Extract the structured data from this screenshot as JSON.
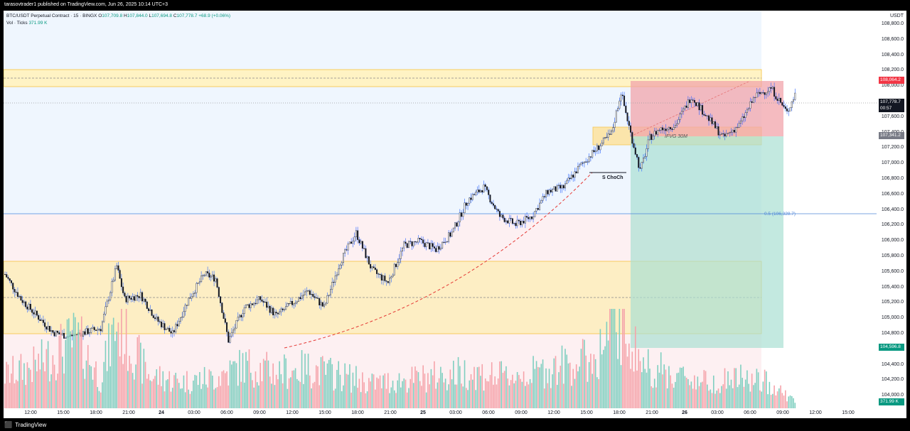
{
  "header": {
    "published": "tarasovtrader1 published on TradingView.com, Jun 26, 2025 10:14 UTC+3"
  },
  "legend": {
    "symbol": "BTC/USDT Perpetual Contract · 15 · BINGX",
    "o_label": "O",
    "o": "107,709.8",
    "h_label": "H",
    "h": "107,844.0",
    "l_label": "L",
    "l": "107,694.8",
    "c_label": "C",
    "c": "107,778.7",
    "change": "+68.9 (+0.06%)",
    "vol_label": "Vol · Ticks",
    "vol": "371.99 K"
  },
  "price_axis": {
    "unit": "USDT",
    "ticks": [
      "108,800.0",
      "108,600.0",
      "108,400.0",
      "108,200.0",
      "108,000.0",
      "107,800.0",
      "107,600.0",
      "107,400.0",
      "107,200.0",
      "107,000.0",
      "106,800.0",
      "106,600.0",
      "106,400.0",
      "106,200.0",
      "106,000.0",
      "105,800.0",
      "105,600.0",
      "105,400.0",
      "105,200.0",
      "105,000.0",
      "104,800.0",
      "104,600.0",
      "104,400.0",
      "104,200.0",
      "104,000.0"
    ]
  },
  "badges": {
    "stop": "108,064.2",
    "current_price": "107,778.7",
    "countdown": "00:57",
    "entry": "107,341.2",
    "target": "104,596.8",
    "volume": "371.99 K"
  },
  "time_axis": {
    "ticks": [
      {
        "label": "12:00",
        "bold": false
      },
      {
        "label": "15:00",
        "bold": false
      },
      {
        "label": "18:00",
        "bold": false
      },
      {
        "label": "21:00",
        "bold": false
      },
      {
        "label": "24",
        "bold": true
      },
      {
        "label": "03:00",
        "bold": false
      },
      {
        "label": "06:00",
        "bold": false
      },
      {
        "label": "09:00",
        "bold": false
      },
      {
        "label": "12:00",
        "bold": false
      },
      {
        "label": "15:00",
        "bold": false
      },
      {
        "label": "18:00",
        "bold": false
      },
      {
        "label": "21:00",
        "bold": false
      },
      {
        "label": "25",
        "bold": true
      },
      {
        "label": "03:00",
        "bold": false
      },
      {
        "label": "06:00",
        "bold": false
      },
      {
        "label": "09:00",
        "bold": false
      },
      {
        "label": "12:00",
        "bold": false
      },
      {
        "label": "15:00",
        "bold": false
      },
      {
        "label": "18:00",
        "bold": false
      },
      {
        "label": "21:00",
        "bold": false
      },
      {
        "label": "26",
        "bold": true
      },
      {
        "label": "03:00",
        "bold": false
      },
      {
        "label": "06:00",
        "bold": false
      },
      {
        "label": "09:00",
        "bold": false
      },
      {
        "label": "12:00",
        "bold": false
      },
      {
        "label": "15:00",
        "bold": false
      }
    ]
  },
  "annotations": {
    "choch": "S ChoCh",
    "ifvg": "IFVG 30M",
    "fib": "0.5 (106,328.7)"
  },
  "colors": {
    "up": "#089981",
    "down": "#f23645",
    "wick": "#2962ff",
    "candle_body": "#131722",
    "fib": "#2962ff",
    "zone": "#ffeb3b",
    "curve": "#e53935"
  },
  "footer": {
    "brand": "TradingView"
  },
  "chart_data": {
    "type": "candlestick",
    "title": "BTC/USDT Perpetual Contract · 15 · BINGX",
    "ylim": [
      104000,
      108800
    ],
    "key_levels": {
      "stop": 108064.2,
      "last": 107778.7,
      "entry": 107341.2,
      "target": 104596.8,
      "fib_0_5": 106328.7
    },
    "close_path": [
      [
        0,
        105600
      ],
      [
        10,
        105300
      ],
      [
        20,
        105100
      ],
      [
        30,
        104900
      ],
      [
        40,
        104850
      ],
      [
        50,
        104900
      ],
      [
        60,
        104950
      ],
      [
        70,
        105700
      ],
      [
        75,
        105300
      ],
      [
        85,
        105350
      ],
      [
        95,
        105050
      ],
      [
        105,
        104880
      ],
      [
        115,
        105300
      ],
      [
        125,
        105600
      ],
      [
        132,
        105550
      ],
      [
        140,
        104800
      ],
      [
        150,
        105200
      ],
      [
        160,
        105300
      ],
      [
        170,
        105100
      ],
      [
        180,
        105250
      ],
      [
        190,
        105400
      ],
      [
        200,
        105200
      ],
      [
        210,
        105750
      ],
      [
        220,
        106100
      ],
      [
        230,
        105650
      ],
      [
        240,
        105500
      ],
      [
        250,
        105950
      ],
      [
        260,
        106000
      ],
      [
        270,
        105900
      ],
      [
        280,
        106100
      ],
      [
        290,
        106500
      ],
      [
        300,
        106650
      ],
      [
        310,
        106300
      ],
      [
        320,
        106200
      ],
      [
        330,
        106300
      ],
      [
        340,
        106600
      ],
      [
        350,
        106650
      ],
      [
        360,
        106900
      ],
      [
        370,
        107100
      ],
      [
        380,
        107300
      ],
      [
        386,
        107800
      ],
      [
        392,
        107300
      ],
      [
        398,
        106850
      ],
      [
        404,
        107250
      ],
      [
        410,
        107350
      ],
      [
        420,
        107400
      ],
      [
        430,
        107750
      ],
      [
        440,
        107500
      ],
      [
        450,
        107250
      ],
      [
        460,
        107400
      ],
      [
        470,
        107750
      ],
      [
        480,
        107850
      ],
      [
        490,
        107550
      ],
      [
        495,
        107778.7
      ]
    ],
    "volume_path": [
      [
        0,
        200
      ],
      [
        20,
        260
      ],
      [
        45,
        420
      ],
      [
        60,
        180
      ],
      [
        70,
        520
      ],
      [
        90,
        200
      ],
      [
        110,
        160
      ],
      [
        130,
        180
      ],
      [
        150,
        260
      ],
      [
        170,
        220
      ],
      [
        190,
        240
      ],
      [
        210,
        200
      ],
      [
        230,
        150
      ],
      [
        260,
        180
      ],
      [
        290,
        220
      ],
      [
        310,
        190
      ],
      [
        330,
        210
      ],
      [
        350,
        260
      ],
      [
        370,
        300
      ],
      [
        385,
        540
      ],
      [
        400,
        260
      ],
      [
        420,
        200
      ],
      [
        440,
        160
      ],
      [
        460,
        180
      ],
      [
        480,
        150
      ],
      [
        495,
        40
      ]
    ]
  }
}
